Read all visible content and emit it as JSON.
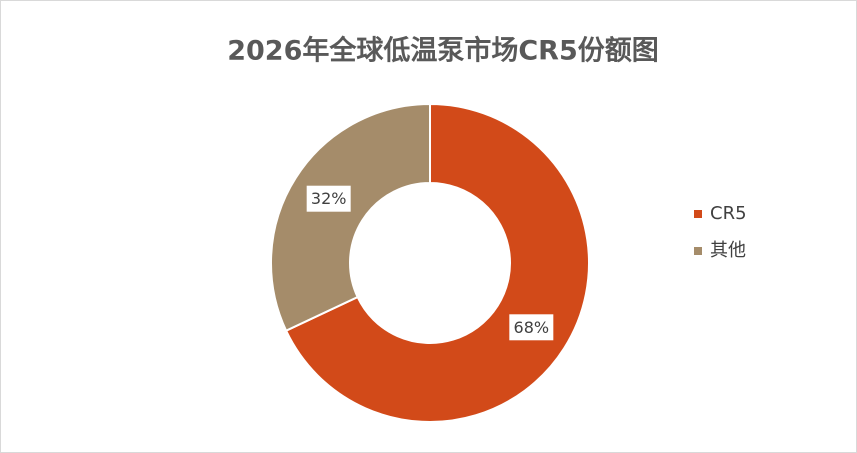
{
  "chart_data": {
    "type": "donut",
    "title": "2026年全球低温泵市场CR5份额图",
    "categories": [
      "CR5",
      "其他"
    ],
    "values": [
      68,
      32
    ],
    "value_labels": [
      "68%",
      "32%"
    ],
    "colors": [
      "#d24a19",
      "#a58c6a"
    ],
    "legend": "right"
  }
}
